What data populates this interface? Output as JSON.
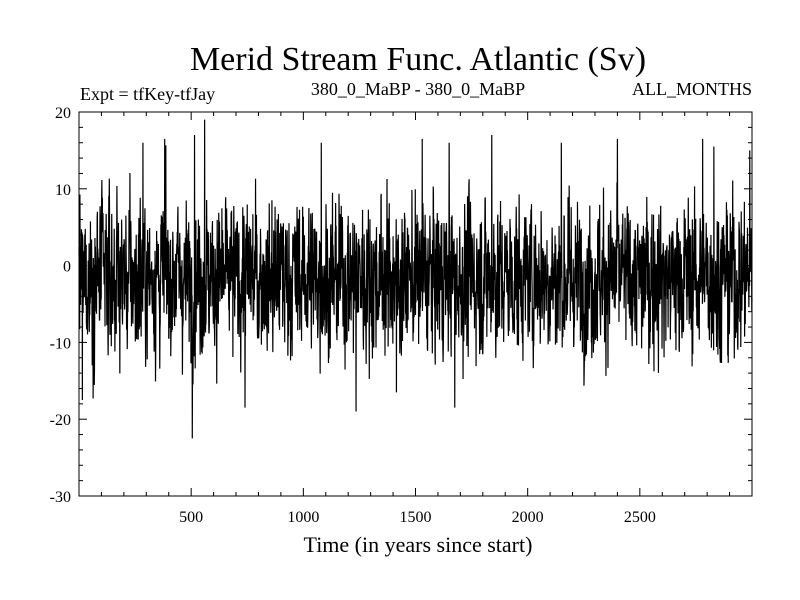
{
  "chart_data": {
    "type": "line",
    "title": "Merid Stream Func. Atlantic (Sv)",
    "subtitle_left": "Expt = tfKey-tfJay",
    "subtitle_center": "380_0_MaBP - 380_0_MaBP",
    "subtitle_right": "ALL_MONTHS",
    "xlabel": "Time (in years since start)",
    "ylabel": "",
    "xlim": [
      0,
      3000
    ],
    "ylim": [
      -30,
      20
    ],
    "x_ticks": [
      500,
      1000,
      1500,
      2000,
      2500
    ],
    "y_ticks": [
      20,
      10,
      0,
      -10,
      -20,
      -30
    ],
    "grid": false,
    "series": [
      {
        "sampling": "annual, years 0-3000 (dense noisy signal)",
        "approx_mean": -1.5,
        "approx_range": [
          -22.5,
          19
        ],
        "notable_points": [
          {
            "x": 15,
            "y": -17.5
          },
          {
            "x": 285,
            "y": 16
          },
          {
            "x": 382,
            "y": 16.5
          },
          {
            "x": 505,
            "y": -22.5
          },
          {
            "x": 515,
            "y": 17
          },
          {
            "x": 560,
            "y": 19
          },
          {
            "x": 740,
            "y": -18.5
          },
          {
            "x": 1080,
            "y": 16
          },
          {
            "x": 1235,
            "y": -19
          },
          {
            "x": 1415,
            "y": -16.5
          },
          {
            "x": 1530,
            "y": 16.5
          },
          {
            "x": 1650,
            "y": 16
          },
          {
            "x": 1675,
            "y": -18.5
          },
          {
            "x": 1840,
            "y": 17
          },
          {
            "x": 2150,
            "y": 16
          },
          {
            "x": 2400,
            "y": 16.5
          },
          {
            "x": 2780,
            "y": 16.5
          },
          {
            "x": 2830,
            "y": 15.5
          },
          {
            "x": 2990,
            "y": 15
          }
        ]
      }
    ]
  }
}
